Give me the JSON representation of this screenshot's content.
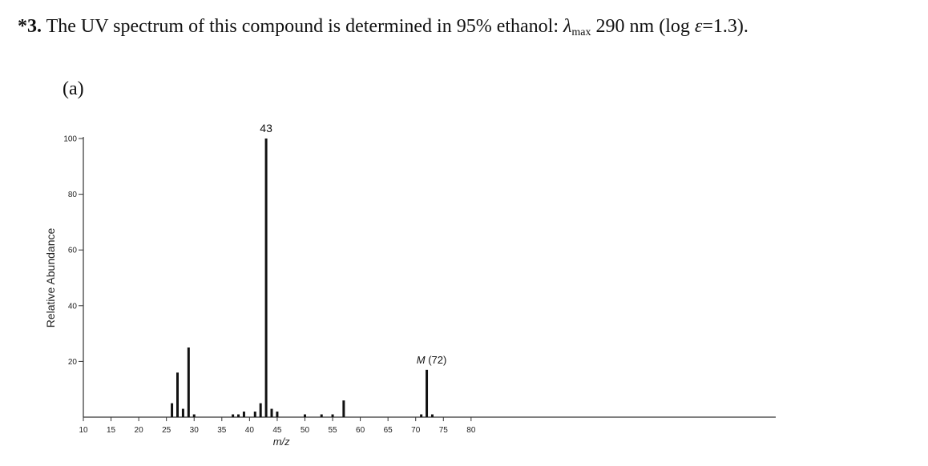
{
  "question": {
    "number": "*3.",
    "text_before": "The UV spectrum of this compound is determined in 95% ethanol: ",
    "lambda_symbol": "λ",
    "lambda_sub": "max",
    "text_after": " 290 nm (log ",
    "epsilon_symbol": "ε",
    "text_end": "=1.3)."
  },
  "panel_label": "(a)",
  "chart_data": {
    "type": "bar",
    "title": "",
    "xlabel": "m/z",
    "ylabel": "Relative Abundance",
    "xlim": [
      10,
      135
    ],
    "ylim": [
      0,
      100
    ],
    "xticks": [
      10,
      15,
      20,
      25,
      30,
      35,
      40,
      45,
      50,
      55,
      60,
      65,
      70,
      75,
      80
    ],
    "yticks": [
      20,
      40,
      60,
      80,
      100
    ],
    "peaks": [
      {
        "mz": 26,
        "intensity": 5
      },
      {
        "mz": 27,
        "intensity": 16
      },
      {
        "mz": 28,
        "intensity": 3
      },
      {
        "mz": 29,
        "intensity": 25
      },
      {
        "mz": 30,
        "intensity": 1
      },
      {
        "mz": 37,
        "intensity": 1
      },
      {
        "mz": 38,
        "intensity": 1
      },
      {
        "mz": 39,
        "intensity": 2
      },
      {
        "mz": 41,
        "intensity": 2
      },
      {
        "mz": 42,
        "intensity": 5
      },
      {
        "mz": 43,
        "intensity": 100
      },
      {
        "mz": 44,
        "intensity": 3
      },
      {
        "mz": 45,
        "intensity": 2
      },
      {
        "mz": 50,
        "intensity": 1
      },
      {
        "mz": 53,
        "intensity": 1
      },
      {
        "mz": 55,
        "intensity": 1
      },
      {
        "mz": 57,
        "intensity": 6
      },
      {
        "mz": 71,
        "intensity": 1
      },
      {
        "mz": 72,
        "intensity": 17
      },
      {
        "mz": 73,
        "intensity": 1
      }
    ],
    "annotations": [
      {
        "text": "43",
        "mz": 43,
        "intensity": 100
      },
      {
        "text": "M (72)",
        "mz": 72,
        "intensity": 17
      }
    ]
  }
}
